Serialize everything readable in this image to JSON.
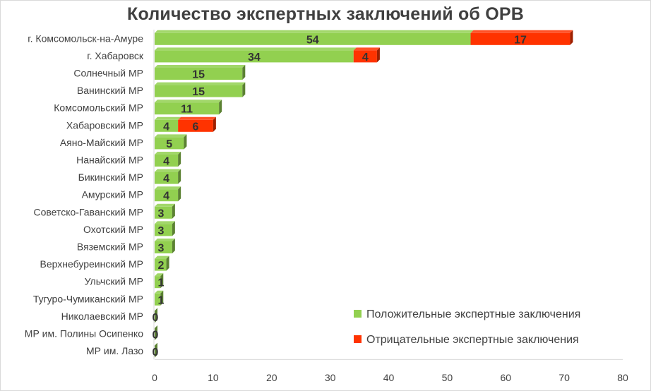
{
  "chart_data": {
    "type": "bar",
    "orientation": "horizontal",
    "stacked": true,
    "title": "Количество экспертных заключений об ОРВ",
    "categories": [
      "г. Комсомольск-на-Амуре",
      "г. Хабаровск",
      "Солнечный МР",
      "Ванинский МР",
      "Комсомольский МР",
      "Хабаровский МР",
      "Аяно-Майский МР",
      "Нанайский МР",
      "Бикинский МР",
      "Амурский МР",
      "Советско-Гаванский МР",
      "Охотский МР",
      "Вяземский МР",
      "Верхнебуреинский МР",
      "Ульчский МР",
      "Тугуро-Чумиканский МР",
      "Николаевский МР",
      "МР им. Полины Осипенко",
      "МР им. Лазо"
    ],
    "series": [
      {
        "name": "Положительные экспертные заключения",
        "color": "#92d050",
        "values": [
          54,
          34,
          15,
          15,
          11,
          4,
          5,
          4,
          4,
          4,
          3,
          3,
          3,
          2,
          1,
          1,
          0,
          0,
          0
        ]
      },
      {
        "name": "Отрицательные экспертные заключения",
        "color": "#ff3300",
        "values": [
          17,
          4,
          0,
          0,
          0,
          6,
          0,
          0,
          0,
          0,
          0,
          0,
          0,
          0,
          0,
          0,
          0,
          0,
          0
        ]
      }
    ],
    "xlim": [
      0,
      80
    ],
    "x_ticks": [
      0,
      10,
      20,
      30,
      40,
      50,
      60,
      70,
      80
    ],
    "grid": false,
    "legend_position": "bottom-right"
  }
}
